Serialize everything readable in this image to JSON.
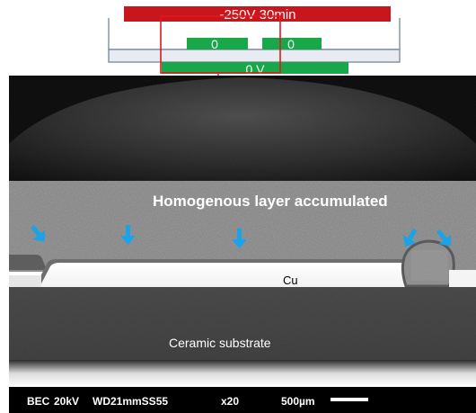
{
  "schematic": {
    "top_electrode_label": "-250V 30min",
    "left_pad_label": "0",
    "right_pad_label": "0",
    "bottom_electrode_label": "0 V",
    "colors": {
      "top_electrode": "#c8161d",
      "pads": "#18a84a",
      "highlight_box": "#e3161d",
      "arrow": "#e3161d",
      "substrate_outline": "#7f8fa3"
    }
  },
  "micrograph": {
    "layer_annotation": "Homogenous layer accumulated",
    "copper_label": "Cu",
    "substrate_label": "Ceramic substrate",
    "arrow_color": "#1aa3e8",
    "scale_bar": {
      "mode": "BEC",
      "voltage": "20kV",
      "working_distance": "WD21mmSS55",
      "magnification": "x20",
      "scale": "500µm"
    }
  }
}
